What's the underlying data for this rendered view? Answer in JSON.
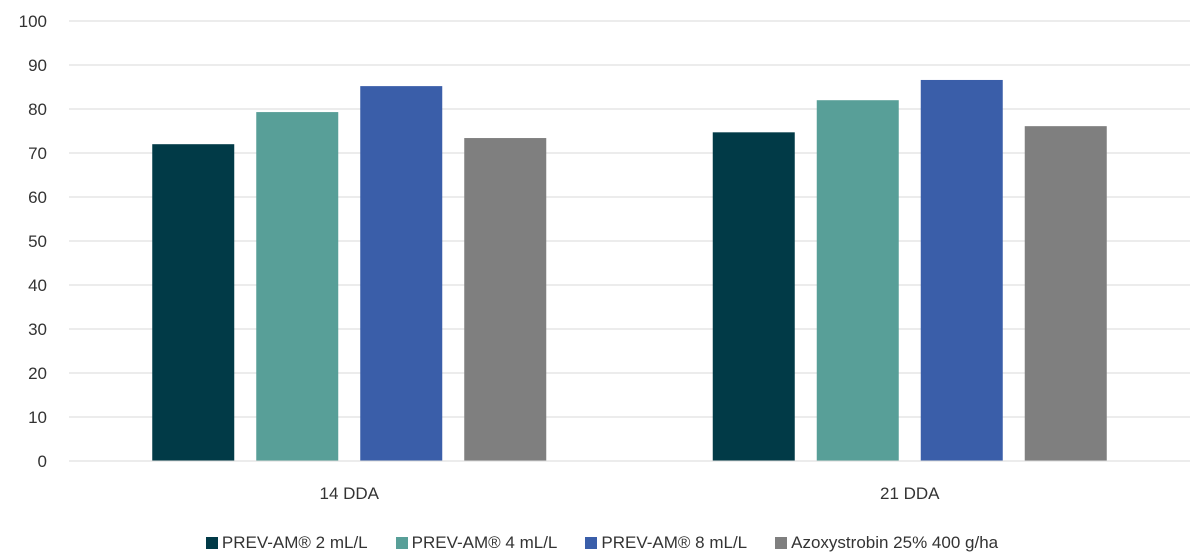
{
  "chart_data": {
    "type": "bar",
    "categories": [
      "14 DDA",
      "21 DDA"
    ],
    "series": [
      {
        "name": "PREV-AM® 2 mL/L",
        "color": "#013a47",
        "values": [
          72,
          74.7
        ]
      },
      {
        "name": "PREV-AM® 4 mL/L",
        "color": "#589f98",
        "values": [
          79.3,
          82
        ]
      },
      {
        "name": "PREV-AM® 8 mL/L",
        "color": "#3a5ea9",
        "values": [
          85.2,
          86.6
        ]
      },
      {
        "name": "Azoxystrobin 25% 400 g/ha",
        "color": "#7f7f7f",
        "values": [
          73.4,
          76.1
        ]
      }
    ],
    "y_ticks": [
      "0",
      "10",
      "20",
      "30",
      "40",
      "50",
      "60",
      "70",
      "80",
      "90",
      "100"
    ],
    "ylim": [
      0,
      100
    ],
    "grid": true,
    "legend_position": "bottom"
  }
}
